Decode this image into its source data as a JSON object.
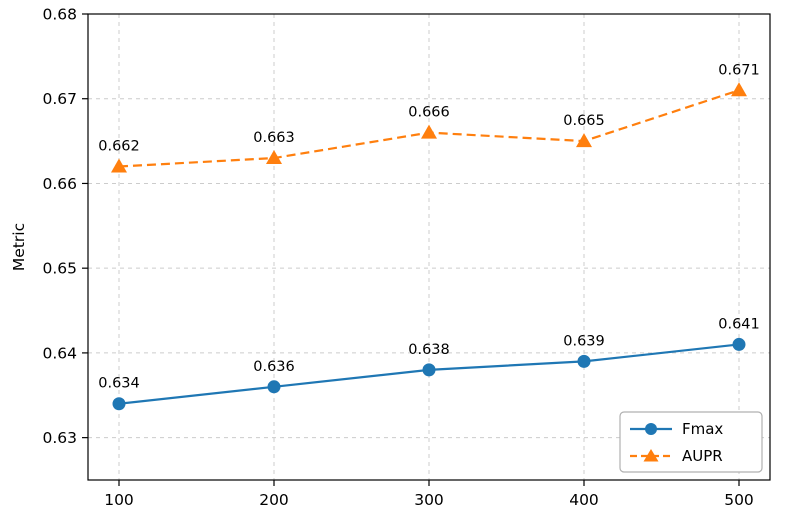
{
  "chart_data": {
    "type": "line",
    "x": [
      100,
      200,
      300,
      400,
      500
    ],
    "series": [
      {
        "name": "Fmax",
        "values": [
          0.634,
          0.636,
          0.638,
          0.639,
          0.641
        ],
        "point_labels": [
          "0.634",
          "0.636",
          "0.638",
          "0.639",
          "0.641"
        ],
        "color": "#1f77b4",
        "line_style": "solid",
        "marker": "circle"
      },
      {
        "name": "AUPR",
        "values": [
          0.662,
          0.663,
          0.666,
          0.665,
          0.671
        ],
        "point_labels": [
          "0.662",
          "0.663",
          "0.666",
          "0.665",
          "0.671"
        ],
        "color": "#ff7f0e",
        "line_style": "dashed",
        "marker": "triangle"
      }
    ],
    "title": "",
    "xlabel": "",
    "ylabel": "Metric",
    "xticks": [
      100,
      200,
      300,
      400,
      500
    ],
    "yticks": [
      0.63,
      0.64,
      0.65,
      0.66,
      0.67,
      0.68
    ],
    "xlim": [
      80,
      520
    ],
    "ylim": [
      0.625,
      0.68
    ],
    "grid": true,
    "grid_color": "#cccccc",
    "axis_color": "#000000",
    "legend_position": "lower right"
  }
}
